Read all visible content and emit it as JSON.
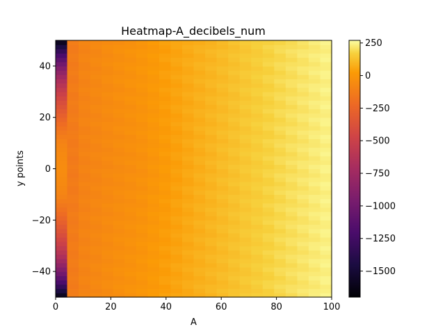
{
  "chart_data": {
    "type": "heatmap",
    "title": "Heatmap-A_decibels_num",
    "xlabel": "A",
    "ylabel": "y points",
    "xlim": [
      0,
      100
    ],
    "ylim": [
      -50,
      50
    ],
    "x_ticks": [
      0,
      20,
      40,
      60,
      80,
      100
    ],
    "y_ticks": [
      -40,
      -20,
      0,
      20,
      40
    ],
    "colormap": "inferno",
    "colorbar": {
      "range": [
        -1700,
        270
      ],
      "ticks": [
        250,
        0,
        -250,
        -500,
        -750,
        -1000,
        -1250,
        -1500
      ],
      "tick_labels": [
        "250",
        "0",
        "−250",
        "−500",
        "−750",
        "−1000",
        "−1250",
        "−1500"
      ]
    },
    "grid": {
      "x_bins": 24,
      "x_range": [
        0,
        100
      ],
      "y_bins": 60,
      "y_range": [
        -50,
        50
      ]
    },
    "first_column_profile": {
      "y": [
        -50,
        -45,
        -40,
        -35,
        -30,
        -25,
        -20,
        -15,
        -10,
        -5,
        0,
        5,
        10,
        15,
        20,
        25,
        30,
        35,
        40,
        45,
        50
      ],
      "value": [
        -1650,
        -1250,
        -950,
        -700,
        -520,
        -380,
        -260,
        -160,
        -90,
        -60,
        -50,
        -60,
        -90,
        -160,
        -260,
        -380,
        -520,
        -700,
        -950,
        -1250,
        -1650
      ]
    },
    "bulk_profile": {
      "x": [
        4,
        10,
        20,
        30,
        40,
        50,
        60,
        70,
        80,
        90,
        100
      ],
      "value": [
        -150,
        -90,
        -45,
        -10,
        35,
        75,
        110,
        150,
        185,
        215,
        245
      ]
    },
    "colors": {
      "background": "#ffffff",
      "axis": "#000000"
    }
  }
}
